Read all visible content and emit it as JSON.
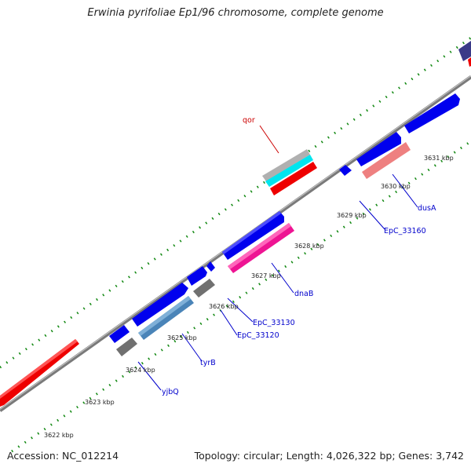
{
  "title": "Erwinia pyrifoliae Ep1/96 chromosome, complete genome",
  "footer": {
    "accession": "Accession: NC_012214",
    "summary": "Topology: circular; Length: 4,026,322 bp; Genes: 3,742"
  },
  "colors": {
    "backbone": "#8a8a8a",
    "ticks": "#118811",
    "label_blue": "#0000cc",
    "label_red": "#cc0000"
  },
  "kbp_labels": [
    "3622 kbp",
    "3623 kbp",
    "3624 kbp",
    "3625 kbp",
    "3626 kbp",
    "3627 kbp",
    "3628 kbp",
    "3629 kbp",
    "3630 kbp",
    "3631 kbp"
  ],
  "genes": [
    {
      "label": "qor",
      "color": "red"
    },
    {
      "label": "dusA",
      "color": "blue"
    },
    {
      "label": "EpC_33160",
      "color": "blue"
    },
    {
      "label": "dnaB",
      "color": "blue"
    },
    {
      "label": "EpC_33130",
      "color": "blue"
    },
    {
      "label": "EpC_33120",
      "color": "blue"
    },
    {
      "label": "tyrB",
      "color": "blue"
    },
    {
      "label": "yjbQ",
      "color": "blue"
    }
  ]
}
